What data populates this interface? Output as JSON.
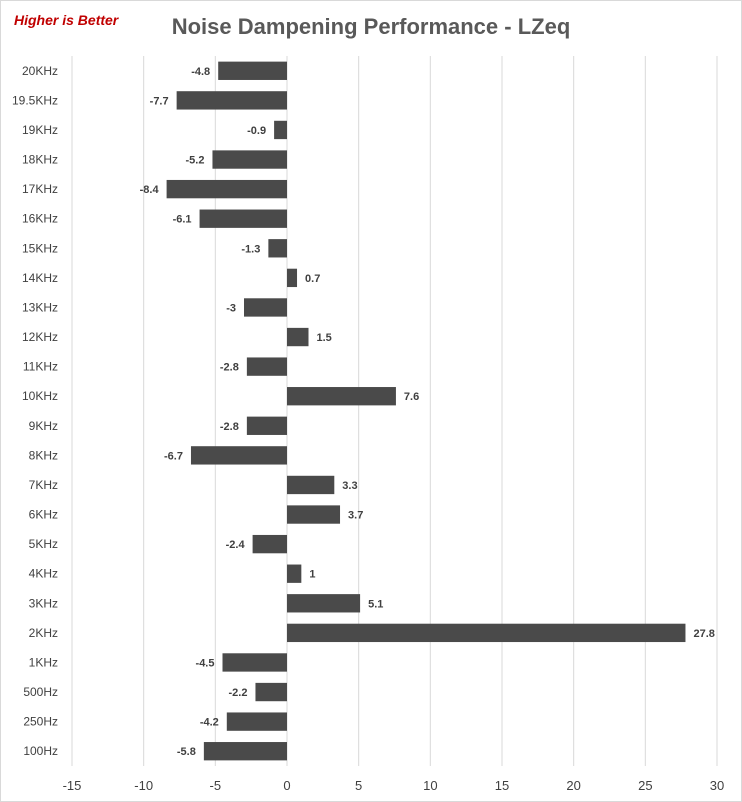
{
  "note": "Higher is Better",
  "colors": {
    "bar": "#4a4a4a",
    "grid": "#d9d9d9",
    "note": "#c00000",
    "title": "#595959"
  },
  "chart_data": {
    "type": "bar",
    "orientation": "horizontal",
    "title": "Noise Dampening Performance - LZeq",
    "categories": [
      "20KHz",
      "19.5KHz",
      "19KHz",
      "18KHz",
      "17KHz",
      "16KHz",
      "15KHz",
      "14KHz",
      "13KHz",
      "12KHz",
      "11KHz",
      "10KHz",
      "9KHz",
      "8KHz",
      "7KHz",
      "6KHz",
      "5KHz",
      "4KHz",
      "3KHz",
      "2KHz",
      "1KHz",
      "500Hz",
      "250Hz",
      "100Hz"
    ],
    "values": [
      -4.8,
      -7.7,
      -0.9,
      -5.2,
      -8.4,
      -6.1,
      -1.3,
      0.7,
      -3,
      1.5,
      -2.8,
      7.6,
      -2.8,
      -6.7,
      3.3,
      3.7,
      -2.4,
      1,
      5.1,
      27.8,
      -4.5,
      -2.2,
      -4.2,
      -5.8
    ],
    "value_labels": [
      "-4.8",
      "-7.7",
      "-0.9",
      "-5.2",
      "-8.4",
      "-6.1",
      "-1.3",
      "0.7",
      "-3",
      "1.5",
      "-2.8",
      "7.6",
      "-2.8",
      "-6.7",
      "3.3",
      "3.7",
      "-2.4",
      "1",
      "5.1",
      "27.8",
      "-4.5",
      "-2.2",
      "-4.2",
      "-5.8"
    ],
    "xlim": [
      -15,
      30
    ],
    "xticks": [
      -15,
      -10,
      -5,
      0,
      5,
      10,
      15,
      20,
      25,
      30
    ],
    "grid": "vertical",
    "legend": "none"
  }
}
